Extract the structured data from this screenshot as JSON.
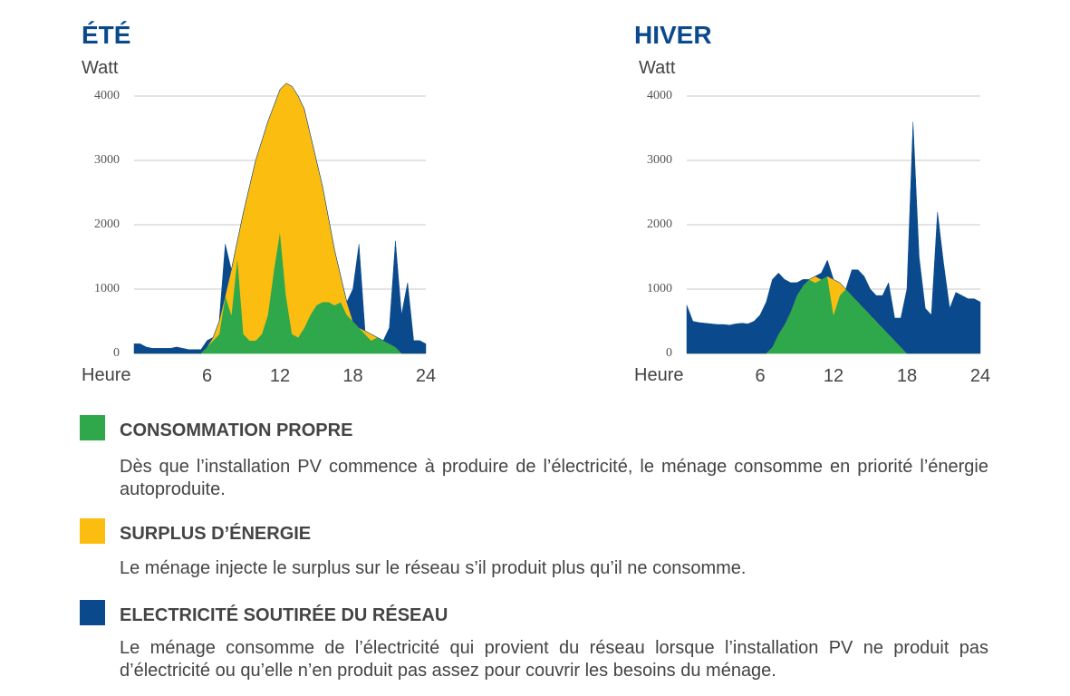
{
  "chart_data": [
    {
      "type": "stacked-area",
      "title": "ÉTÉ",
      "ylabel": "Watt",
      "xlabel": "Heure",
      "x": [
        0,
        0.5,
        1,
        1.5,
        2,
        2.5,
        3,
        3.5,
        4,
        4.5,
        5,
        5.5,
        6,
        6.5,
        7,
        7.5,
        8,
        8.5,
        9,
        9.5,
        10,
        10.5,
        11,
        11.5,
        12,
        12.5,
        13,
        13.5,
        14,
        14.5,
        15,
        15.5,
        16,
        16.5,
        17,
        17.5,
        18,
        18.5,
        19,
        19.5,
        20,
        20.5,
        21,
        21.5,
        22,
        22.5,
        23,
        23.5,
        24
      ],
      "series": [
        {
          "color": "#2ea84a",
          "values": [
            0,
            0,
            0,
            0,
            0,
            0,
            0,
            0,
            0,
            0,
            0,
            0,
            100,
            200,
            300,
            900,
            600,
            1500,
            300,
            200,
            200,
            300,
            600,
            1300,
            1900,
            900,
            300,
            250,
            400,
            600,
            750,
            800,
            800,
            750,
            800,
            600,
            500,
            400,
            300,
            200,
            250,
            200,
            150,
            100,
            0,
            0,
            0,
            0,
            0
          ]
        },
        {
          "color": "#fbbd0f",
          "values": [
            0,
            0,
            0,
            0,
            0,
            0,
            0,
            0,
            0,
            0,
            0,
            0,
            0,
            50,
            200,
            0,
            700,
            250,
            1900,
            2400,
            2800,
            3000,
            3000,
            2550,
            2200,
            3300,
            3850,
            3750,
            3400,
            2800,
            2250,
            1800,
            1300,
            850,
            400,
            200,
            0,
            0,
            50,
            100,
            0,
            0,
            0,
            0,
            0,
            0,
            0,
            0,
            0
          ]
        },
        {
          "color": "#0a4a8c",
          "values": [
            150,
            150,
            100,
            80,
            80,
            80,
            80,
            100,
            80,
            60,
            60,
            60,
            100,
            0,
            0,
            800,
            0,
            0,
            0,
            0,
            0,
            0,
            0,
            0,
            0,
            0,
            0,
            0,
            0,
            0,
            0,
            0,
            0,
            0,
            0,
            0,
            500,
            1300,
            0,
            0,
            0,
            0,
            250,
            1650,
            600,
            1100,
            200,
            200,
            150
          ]
        }
      ],
      "xlim": [
        0,
        24
      ],
      "xticks": [
        6,
        12,
        18,
        24
      ],
      "ylim": [
        0,
        4000
      ],
      "yticks": [
        0,
        1000,
        2000,
        3000,
        4000
      ],
      "grid": true
    },
    {
      "type": "stacked-area",
      "title": "HIVER",
      "ylabel": "Watt",
      "xlabel": "Heure",
      "x": [
        0,
        0.5,
        1,
        1.5,
        2,
        2.5,
        3,
        3.5,
        4,
        4.5,
        5,
        5.5,
        6,
        6.5,
        7,
        7.5,
        8,
        8.5,
        9,
        9.5,
        10,
        10.5,
        11,
        11.5,
        12,
        12.5,
        13,
        13.5,
        14,
        14.5,
        15,
        15.5,
        16,
        16.5,
        17,
        17.5,
        18,
        18.5,
        19,
        19.5,
        20,
        20.5,
        21,
        21.5,
        22,
        22.5,
        23,
        23.5,
        24
      ],
      "series": [
        {
          "color": "#2ea84a",
          "values": [
            0,
            0,
            0,
            0,
            0,
            0,
            0,
            0,
            0,
            0,
            0,
            0,
            0,
            0,
            100,
            300,
            450,
            650,
            900,
            1050,
            1150,
            1100,
            1150,
            1200,
            600,
            900,
            1000,
            900,
            800,
            700,
            600,
            500,
            400,
            300,
            200,
            100,
            0,
            0,
            0,
            0,
            0,
            0,
            0,
            0,
            0,
            0,
            0,
            0,
            0
          ]
        },
        {
          "color": "#fbbd0f",
          "values": [
            0,
            0,
            0,
            0,
            0,
            0,
            0,
            0,
            0,
            0,
            0,
            0,
            0,
            0,
            0,
            0,
            0,
            0,
            0,
            0,
            0,
            100,
            0,
            0,
            550,
            200,
            0,
            0,
            0,
            0,
            0,
            0,
            0,
            0,
            0,
            0,
            0,
            0,
            0,
            0,
            0,
            0,
            0,
            0,
            0,
            0,
            0,
            0,
            0
          ]
        },
        {
          "color": "#0a4a8c",
          "values": [
            750,
            500,
            480,
            470,
            460,
            450,
            450,
            440,
            460,
            470,
            460,
            500,
            600,
            800,
            1050,
            950,
            700,
            450,
            200,
            100,
            0,
            0,
            100,
            250,
            0,
            0,
            0,
            400,
            500,
            500,
            400,
            400,
            500,
            800,
            350,
            450,
            1000,
            3600,
            1500,
            700,
            600,
            2200,
            1400,
            700,
            950,
            900,
            850,
            850,
            800
          ]
        }
      ],
      "xlim": [
        0,
        24
      ],
      "xticks": [
        6,
        12,
        18,
        24
      ],
      "ylim": [
        0,
        4000
      ],
      "yticks": [
        0,
        1000,
        2000,
        3000,
        4000
      ],
      "grid": true
    }
  ],
  "legend": [
    {
      "label": "CONSOMMATION PROPRE",
      "color": "#2ea84a",
      "description": "Dès que l’installation PV commence à produire de l’électricité, le ménage consomme en priorité l’énergie autoproduite."
    },
    {
      "label": "SURPLUS D’ÉNERGIE",
      "color": "#fbbd0f",
      "description": "Le ménage injecte le surplus sur le réseau s’il produit plus qu’il ne consomme."
    },
    {
      "label": "ELECTRICITÉ SOUTIRÉE DU RÉSEAU",
      "color": "#0a4a8c",
      "description": "Le ménage consomme de l’électricité qui provient du réseau lorsque l’installation PV ne produit pas d’électricité ou qu’elle n’en produit pas assez pour couvrir les besoins du ménage."
    }
  ]
}
